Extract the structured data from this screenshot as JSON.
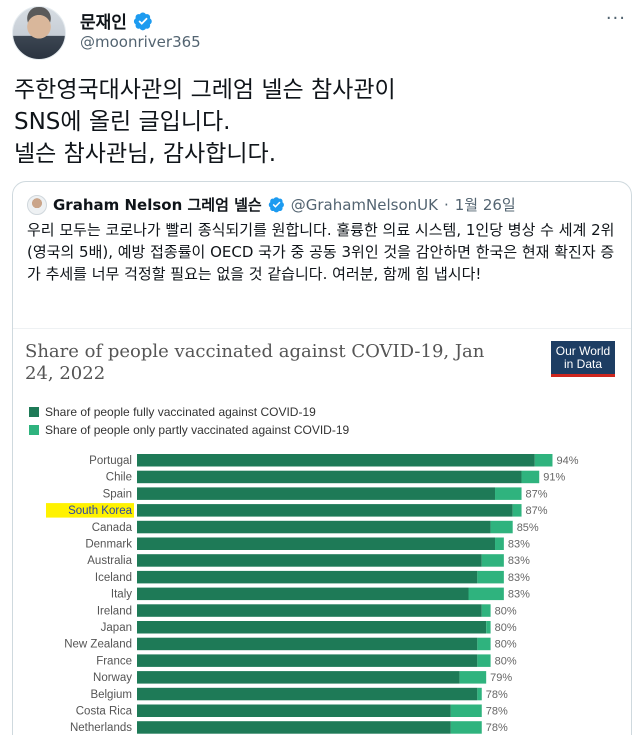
{
  "author": {
    "display_name": "문재인",
    "handle": "@moonriver365"
  },
  "tweet": {
    "lines": [
      "주한영국대사관의 그레엄 넬슨 참사관이",
      "SNS에 올린 글입니다.",
      "넬슨 참사관님, 감사합니다."
    ]
  },
  "quote": {
    "name": "Graham Nelson 그레엄 넬슨",
    "handle": "@GrahamNelsonUK",
    "separator": "·",
    "date": "1월 26일",
    "text": "우리 모두는 코로나가 빨리 종식되기를 원합니다. 훌륭한 의료 시스템, 1인당 병상 수 세계 2위(영국의 5배),  예방 접종률이 OECD 국가 중 공동 3위인 것을 감안하면 한국은 현재 확진자 증가 추세를 너무 걱정할 필요는 없을 것 같습니다. 여러분, 함께 힘 냅시다!"
  },
  "owid_logo": {
    "line1": "Our World",
    "line2": "in Data"
  },
  "colors": {
    "fully": "#1e7a57",
    "partly": "#2fb37e",
    "highlight": "#fff200",
    "highlight_text": "#2a44a8",
    "verified": "#1d9bf0"
  },
  "icons": [
    "verified-badge-icon",
    "more-icon"
  ],
  "chart_data": {
    "type": "bar",
    "orientation": "horizontal",
    "stacked": true,
    "title": "Share of people vaccinated against COVID-19, Jan 24, 2022",
    "series_names": [
      "Share of people fully vaccinated against COVID-19",
      "Share of people only partly vaccinated against COVID-19"
    ],
    "highlighted_category": "South Korea",
    "categories": [
      "Portugal",
      "Chile",
      "Spain",
      "South Korea",
      "Canada",
      "Denmark",
      "Australia",
      "Iceland",
      "Italy",
      "Ireland",
      "Japan",
      "New Zealand",
      "France",
      "Norway",
      "Belgium",
      "Costa Rica",
      "Netherlands"
    ],
    "series": [
      {
        "name": "Share of people fully vaccinated against COVID-19",
        "values": [
          90,
          87,
          81,
          85,
          80,
          81,
          78,
          77,
          75,
          78,
          79,
          77,
          77,
          73,
          77,
          71,
          71
        ]
      },
      {
        "name": "Share of people only partly vaccinated against COVID-19",
        "values": [
          4,
          4,
          6,
          2,
          5,
          2,
          5,
          6,
          8,
          2,
          1,
          3,
          3,
          6,
          1,
          7,
          7
        ]
      }
    ],
    "total_labels": [
      "94%",
      "91%",
      "87%",
      "87%",
      "85%",
      "83%",
      "83%",
      "83%",
      "83%",
      "80%",
      "80%",
      "80%",
      "80%",
      "79%",
      "78%",
      "78%",
      "78%"
    ],
    "xlim": [
      0,
      100
    ],
    "grid": false,
    "legend_position": "top-left"
  }
}
